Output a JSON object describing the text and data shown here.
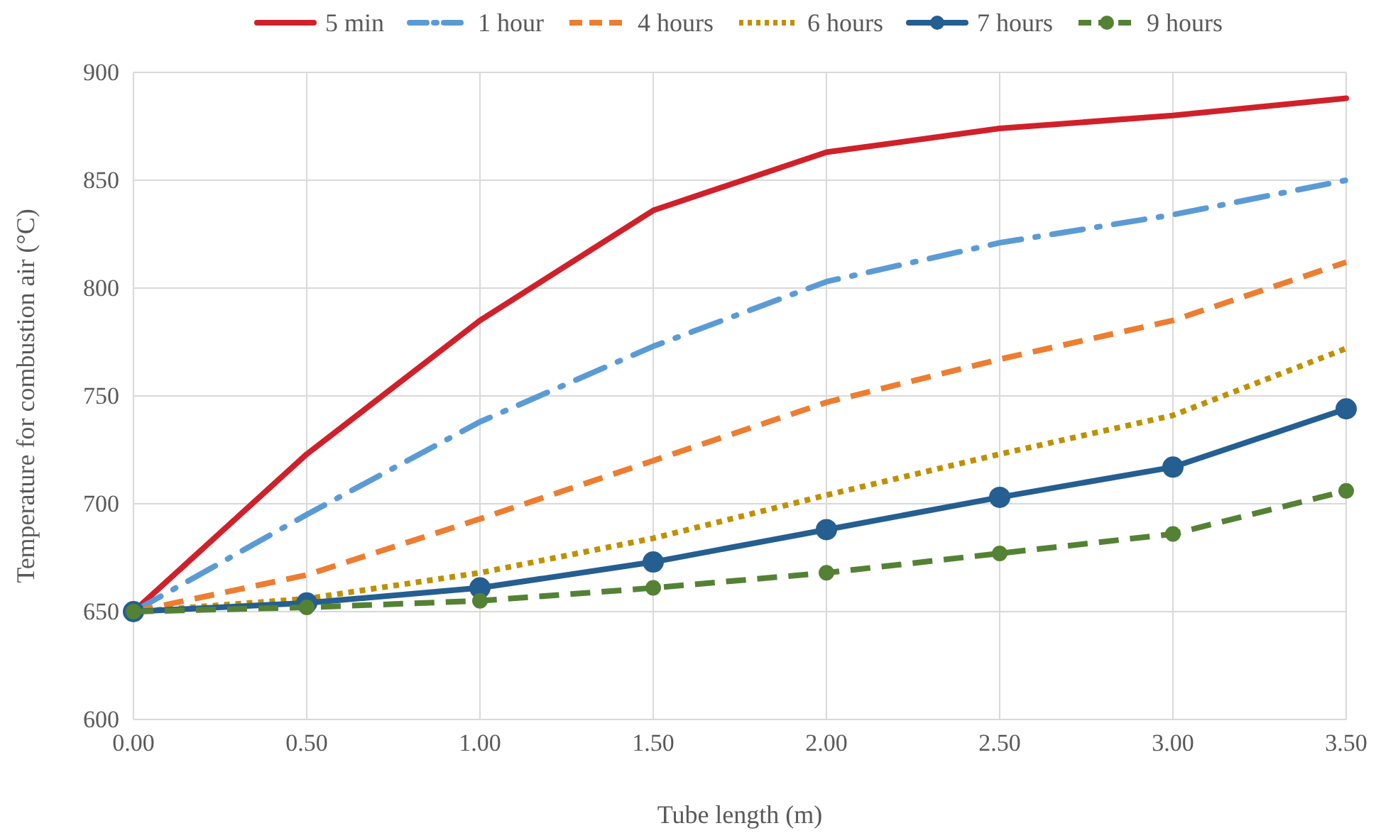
{
  "chart_data": {
    "type": "line",
    "xlabel": "Tube length (m)",
    "ylabel": "Temperature for combustion air (°C)",
    "x": [
      0,
      0.5,
      1,
      1.5,
      2,
      2.5,
      3,
      3.5
    ],
    "xlim": [
      0,
      3.5
    ],
    "xticks": [
      {
        "value": 0,
        "label": "0.00"
      },
      {
        "value": 0.5,
        "label": "0.50"
      },
      {
        "value": 1,
        "label": "1.00"
      },
      {
        "value": 1.5,
        "label": "1.50"
      },
      {
        "value": 2,
        "label": "2.00"
      },
      {
        "value": 2.5,
        "label": "2.50"
      },
      {
        "value": 3,
        "label": "3.00"
      },
      {
        "value": 3.5,
        "label": "3.50"
      }
    ],
    "ylim": [
      600,
      900
    ],
    "yticks": [
      600,
      650,
      700,
      750,
      800,
      850,
      900
    ],
    "grid": true,
    "legend": "top",
    "series": [
      {
        "name": "5 min",
        "color": "#d0202a",
        "line_style": "solid",
        "marker": "none",
        "values": [
          650,
          723,
          785,
          836,
          863,
          874,
          880,
          888
        ]
      },
      {
        "name": "1 hour",
        "color": "#5b9bd5",
        "line_style": "dashdot",
        "marker": "none",
        "values": [
          650,
          695,
          738,
          773,
          803,
          821,
          834,
          850
        ]
      },
      {
        "name": "4 hours",
        "color": "#ed7d31",
        "line_style": "dashed",
        "marker": "none",
        "values": [
          650,
          667,
          693,
          720,
          747,
          767,
          785,
          812
        ]
      },
      {
        "name": "6 hours",
        "color": "#bf9000",
        "line_style": "dotted",
        "marker": "none",
        "values": [
          650,
          656,
          668,
          684,
          704,
          723,
          741,
          772
        ]
      },
      {
        "name": "7 hours",
        "color": "#255e91",
        "line_style": "solid",
        "marker": "circle",
        "values": [
          650,
          654,
          661,
          673,
          688,
          703,
          717,
          744
        ]
      },
      {
        "name": "9 hours",
        "color": "#548235",
        "line_style": "dashed",
        "marker": "circle",
        "values": [
          650,
          652,
          655,
          661,
          668,
          677,
          686,
          706
        ]
      }
    ]
  }
}
